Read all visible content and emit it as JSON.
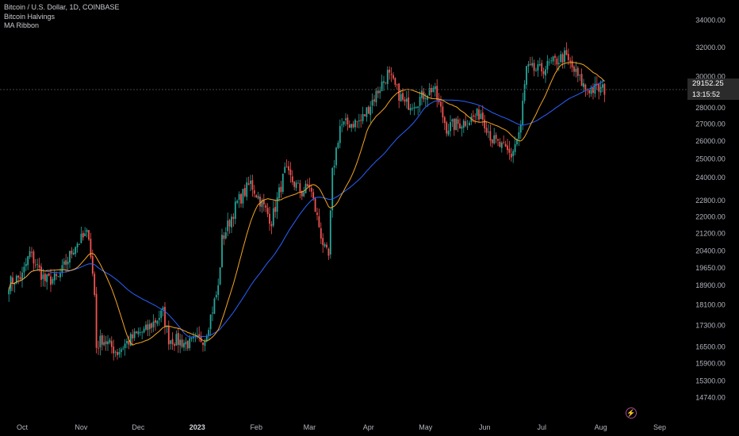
{
  "legend": {
    "symbol": "Bitcoin / U.S. Dollar, 1D, COINBASE",
    "indicator1": "Bitcoin Halvings",
    "indicator2": "MA Ribbon"
  },
  "last_price": "29152.25",
  "countdown": "13:15:52",
  "colors": {
    "background": "#000000",
    "up": "#26a69a",
    "down": "#ef5350",
    "ma_fast": "#f5a623",
    "ma_slow": "#2962ff",
    "axis_text": "#b2b5be"
  },
  "icons": {
    "event": "lightning-icon"
  },
  "chart_data": {
    "type": "candlestick",
    "title": "",
    "y_scale": "log",
    "ylim": [
      14400,
      34800
    ],
    "y_ticks": [
      "34000.00",
      "32000.00",
      "30000.00",
      "29152.25",
      "28000.00",
      "27000.00",
      "26000.00",
      "25000.00",
      "24000.00",
      "22800.00",
      "22000.00",
      "21200.00",
      "20400.00",
      "19650.00",
      "18900.00",
      "18100.00",
      "17300.00",
      "16500.00",
      "15900.00",
      "15300.00",
      "14740.00"
    ],
    "x_ticks": [
      "Oct",
      "Nov",
      "Dec",
      "2023",
      "Feb",
      "Mar",
      "Apr",
      "May",
      "Jun",
      "Jul",
      "Aug",
      "Sep"
    ],
    "series": [
      {
        "name": "BTCUSD",
        "kind": "ohlc",
        "anchors": [
          [
            "2022-09-24",
            19000
          ],
          [
            "2022-10-01",
            19300
          ],
          [
            "2022-10-05",
            20300
          ],
          [
            "2022-10-13",
            19100
          ],
          [
            "2022-10-20",
            19200
          ],
          [
            "2022-10-29",
            20700
          ],
          [
            "2022-11-05",
            21200
          ],
          [
            "2022-11-08",
            18500
          ],
          [
            "2022-11-09",
            16500
          ],
          [
            "2022-11-12",
            16800
          ],
          [
            "2022-11-20",
            16300
          ],
          [
            "2022-11-24",
            16600
          ],
          [
            "2022-12-01",
            17000
          ],
          [
            "2022-12-05",
            17100
          ],
          [
            "2022-12-14",
            17800
          ],
          [
            "2022-12-17",
            16800
          ],
          [
            "2022-12-28",
            16600
          ],
          [
            "2023-01-05",
            16850
          ],
          [
            "2023-01-12",
            18800
          ],
          [
            "2023-01-14",
            20900
          ],
          [
            "2023-01-22",
            22700
          ],
          [
            "2023-01-29",
            23700
          ],
          [
            "2023-02-09",
            21800
          ],
          [
            "2023-02-16",
            24300
          ],
          [
            "2023-02-25",
            23200
          ],
          [
            "2023-03-01",
            23600
          ],
          [
            "2023-03-09",
            20400
          ],
          [
            "2023-03-11",
            20100
          ],
          [
            "2023-03-13",
            24200
          ],
          [
            "2023-03-17",
            26900
          ],
          [
            "2023-03-28",
            27200
          ],
          [
            "2023-04-11",
            30200
          ],
          [
            "2023-04-20",
            28200
          ],
          [
            "2023-04-26",
            28400
          ],
          [
            "2023-05-05",
            29300
          ],
          [
            "2023-05-12",
            26800
          ],
          [
            "2023-05-23",
            27200
          ],
          [
            "2023-05-30",
            27700
          ],
          [
            "2023-06-05",
            26100
          ],
          [
            "2023-06-15",
            25200
          ],
          [
            "2023-06-20",
            26800
          ],
          [
            "2023-06-21",
            28300
          ],
          [
            "2023-06-23",
            30500
          ],
          [
            "2023-06-30",
            30400
          ],
          [
            "2023-07-13",
            31400
          ],
          [
            "2023-07-24",
            29200
          ],
          [
            "2023-08-03",
            29150
          ]
        ]
      },
      {
        "name": "",
        "kind": "ma_fast"
      },
      {
        "name": "",
        "kind": "ma_slow"
      }
    ]
  }
}
